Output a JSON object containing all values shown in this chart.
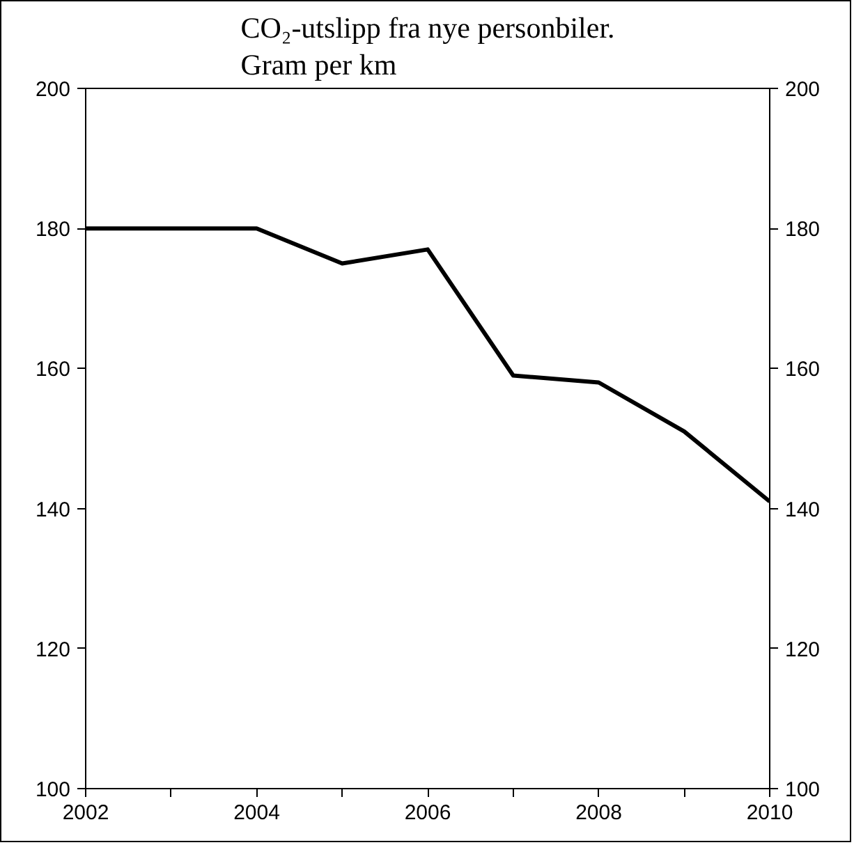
{
  "chart_data": {
    "type": "line",
    "title": "CO₂-utslipp fra nye personbiler.\nGram per km",
    "x": [
      2002,
      2003,
      2004,
      2005,
      2006,
      2007,
      2008,
      2009,
      2010
    ],
    "series": [
      {
        "color": "#000000",
        "values": [
          180,
          180,
          180,
          175,
          177,
          159,
          158,
          151,
          141
        ]
      }
    ],
    "xlim": [
      2002,
      2010
    ],
    "xticks": [
      2002,
      {
        "value": 2003,
        "label": null
      },
      2004,
      {
        "value": 2005,
        "label": null
      },
      2006,
      {
        "value": 2007,
        "label": null
      },
      2008,
      {
        "value": 2009,
        "label": null
      },
      2010
    ],
    "ylim": [
      100,
      200
    ],
    "yticks": [
      100,
      120,
      140,
      160,
      180,
      200
    ],
    "y2lim": [
      100,
      200
    ],
    "y2ticks": [
      100,
      120,
      140,
      160,
      180,
      200
    ],
    "grid": false,
    "marker": "none",
    "line_style": "solid"
  }
}
